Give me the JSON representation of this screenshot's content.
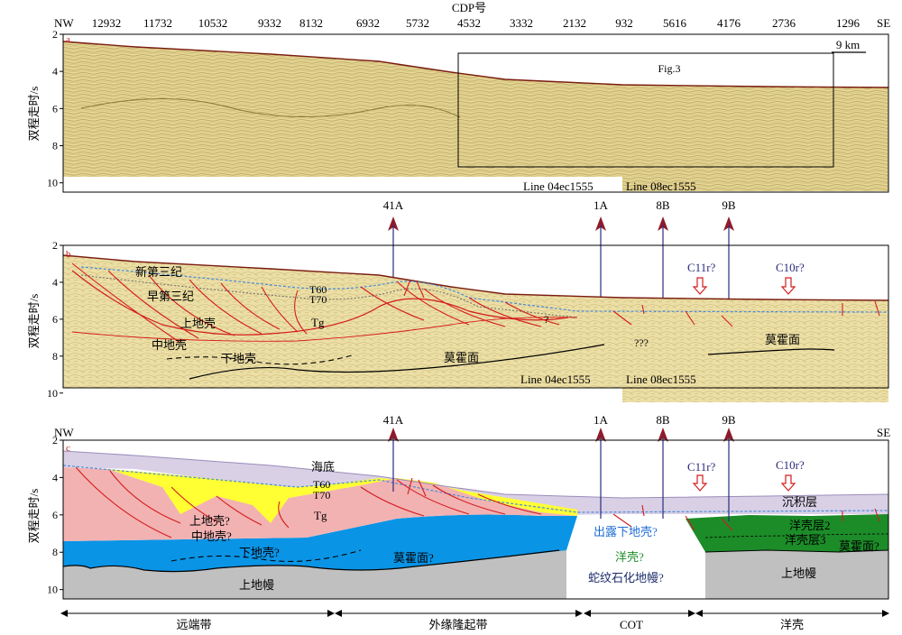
{
  "top_axis": {
    "title": "CDP号",
    "nw": "NW",
    "se": "SE",
    "ticks": [
      "12932",
      "11732",
      "10532",
      "9332",
      "8132",
      "6932",
      "5732",
      "4532",
      "3332",
      "2132",
      "932",
      "5616",
      "4176",
      "2736",
      "1296"
    ]
  },
  "ylabel": "双程走时/s",
  "yticks": [
    "2",
    "4",
    "6",
    "8",
    "10"
  ],
  "panel_a": {
    "letter": "a",
    "scale": "9 km",
    "box_label": "Fig.3",
    "line_left": "Line 04ec1555",
    "line_right": "Line 08ec1555"
  },
  "wells": [
    "41A",
    "1A",
    "8B",
    "9B"
  ],
  "panel_b": {
    "letter": "b",
    "labels": {
      "neogene": "新第三纪",
      "paleogene": "早第三纪",
      "t60": "T60",
      "t70": "T70",
      "tg": "Tg",
      "upper_crust": "上地壳",
      "middle_crust": "中地壳",
      "lower_crust": "下地壳",
      "moho": "莫霍面",
      "moho2": "莫霍面",
      "q1": "?",
      "q3": "???",
      "c11r": "C11r?",
      "c10r": "C10r?",
      "line_left": "Line 04ec1555",
      "line_right": "Line 08ec1555"
    }
  },
  "panel_c": {
    "letter": "c",
    "nw": "NW",
    "se": "SE",
    "labels": {
      "seafloor": "海底",
      "t60": "T60",
      "t70": "T70",
      "tg": "Tg",
      "upper_crust": "上地壳?",
      "middle_crust": "中地壳?",
      "lower_crust": "下地壳?",
      "moho": "莫霍面?",
      "upper_mantle": "上地幔",
      "upper_mantle2": "上地幔",
      "exposed": "出露下地壳?",
      "oceanic": "洋壳?",
      "serpentine": "蛇纹石化地幔?",
      "sediment": "沉积层",
      "oc2": "洋壳层2",
      "oc3": "洋壳层3",
      "moho2": "莫霍面?",
      "c11r": "C11r?",
      "c10r": "C10r?"
    }
  },
  "zones": [
    "远端带",
    "外缘隆起带",
    "COT",
    "洋壳"
  ],
  "colors": {
    "seismic": "#e6d694",
    "seismic_dark": "#a69148",
    "water": "#d9d0e6",
    "sediment_yellow": "#ffff33",
    "upper_crust": "#f2b2b2",
    "lower_crust": "#0a94e6",
    "mantle": "#c0c0c0",
    "oceanic": "#1c8c28",
    "fault": "#d41c1c",
    "well": "#8c1c2c",
    "horizon_blue": "#4a8cd9"
  }
}
